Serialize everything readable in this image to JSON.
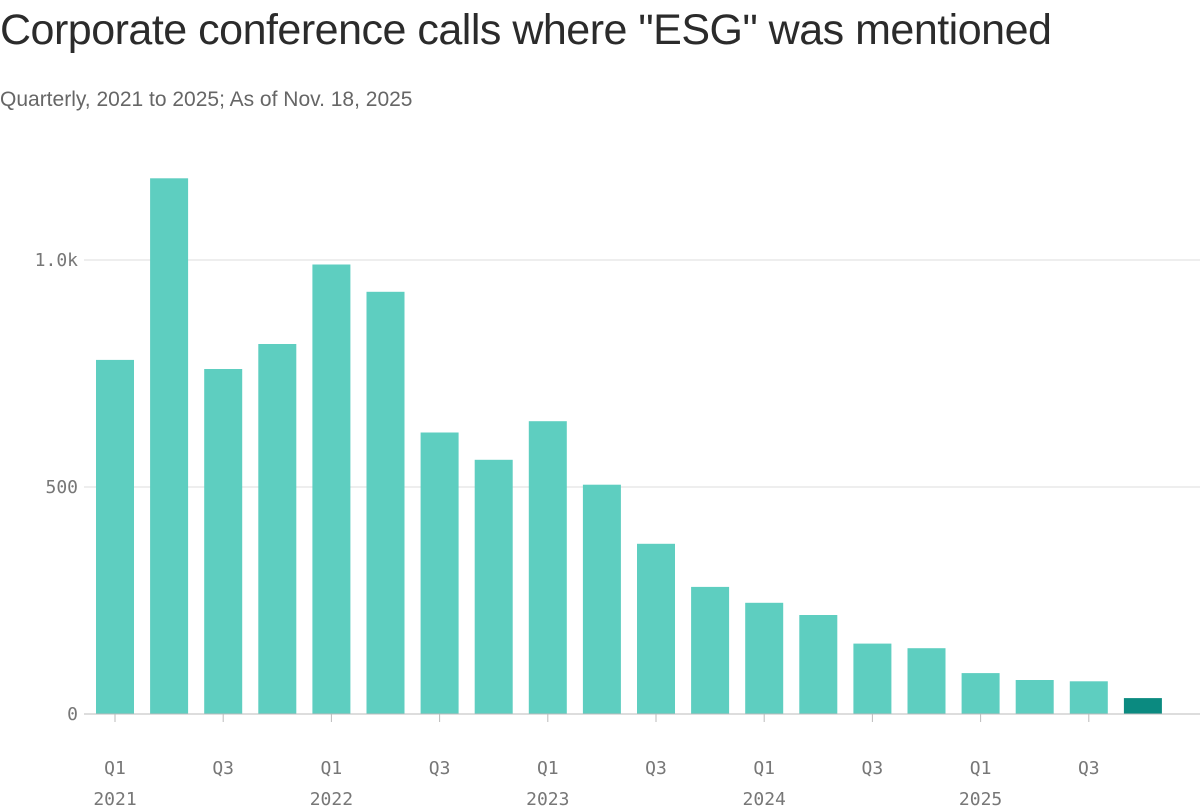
{
  "chart_data": {
    "type": "bar",
    "title": "Corporate conference calls where \"ESG\" was mentioned",
    "subtitle": "Quarterly, 2021 to 2025; As of Nov. 18, 2025",
    "xlabel": "",
    "ylabel": "",
    "ylim": [
      0,
      1200
    ],
    "grid": true,
    "colors": {
      "bar": "#5ecec0",
      "highlight": "#0b8a80"
    },
    "y_ticks": [
      {
        "value": 0,
        "label": "0"
      },
      {
        "value": 500,
        "label": "500"
      },
      {
        "value": 1000,
        "label": "1.0k"
      }
    ],
    "x_tick_labels": [
      {
        "index": 0,
        "quarter": "Q1",
        "year": "2021"
      },
      {
        "index": 2,
        "quarter": "Q3",
        "year": ""
      },
      {
        "index": 4,
        "quarter": "Q1",
        "year": "2022"
      },
      {
        "index": 6,
        "quarter": "Q3",
        "year": ""
      },
      {
        "index": 8,
        "quarter": "Q1",
        "year": "2023"
      },
      {
        "index": 10,
        "quarter": "Q3",
        "year": ""
      },
      {
        "index": 12,
        "quarter": "Q1",
        "year": "2024"
      },
      {
        "index": 14,
        "quarter": "Q3",
        "year": ""
      },
      {
        "index": 16,
        "quarter": "Q1",
        "year": "2025"
      },
      {
        "index": 18,
        "quarter": "Q3",
        "year": ""
      }
    ],
    "categories": [
      "2021 Q1",
      "2021 Q2",
      "2021 Q3",
      "2021 Q4",
      "2022 Q1",
      "2022 Q2",
      "2022 Q3",
      "2022 Q4",
      "2023 Q1",
      "2023 Q2",
      "2023 Q3",
      "2023 Q4",
      "2024 Q1",
      "2024 Q2",
      "2024 Q3",
      "2024 Q4",
      "2025 Q1",
      "2025 Q2",
      "2025 Q3",
      "2025 Q4"
    ],
    "values": [
      780,
      1180,
      760,
      815,
      990,
      930,
      620,
      560,
      645,
      505,
      375,
      280,
      245,
      218,
      155,
      145,
      90,
      75,
      72,
      35
    ],
    "highlight_index": 19
  }
}
